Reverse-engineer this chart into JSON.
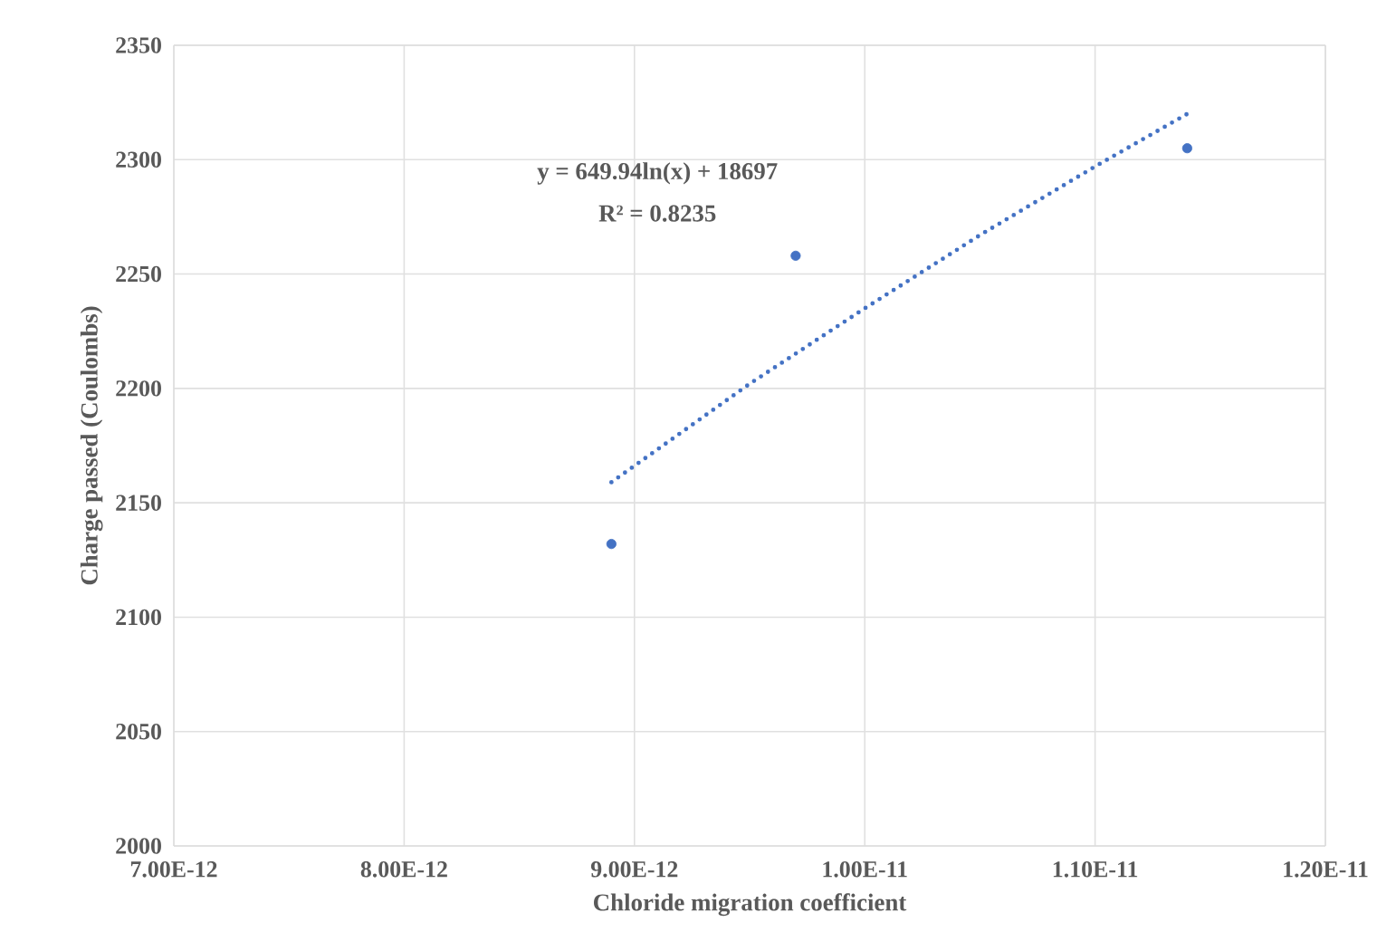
{
  "chart_data": {
    "type": "scatter",
    "xlabel": "Chloride migration coefficient",
    "ylabel": "Charge passed (Coulombs)",
    "annotations": [
      "y = 649.94ln(x) + 18697",
      "R² = 0.8235"
    ],
    "series": [
      {
        "color": "#4472c4",
        "marker": "circle",
        "x": [
          8.9e-12,
          9.7e-12,
          1.14e-11
        ],
        "values": [
          2132,
          2258,
          2305
        ]
      },
      {
        "type": "line",
        "color": "#4472c4",
        "marker": "none",
        "line_style": "dotted",
        "x": [
          8.9e-12,
          9.5e-12,
          1e-11,
          1.05e-11,
          1.1e-11,
          1.14e-11
        ],
        "values": [
          2159,
          2202,
          2235,
          2267,
          2297,
          2320
        ]
      }
    ],
    "xlim": [
      7e-12,
      1.2e-11
    ],
    "xticks": [
      {
        "value": 7e-12,
        "label": "7.00E-12"
      },
      {
        "value": 8e-12,
        "label": "8.00E-12"
      },
      {
        "value": 9e-12,
        "label": "9.00E-12"
      },
      {
        "value": 1e-11,
        "label": "1.00E-11"
      },
      {
        "value": 1.1e-11,
        "label": "1.10E-11"
      },
      {
        "value": 1.2e-11,
        "label": "1.20E-11"
      }
    ],
    "ylim": [
      2000,
      2350
    ],
    "yticks": [
      2000,
      2050,
      2100,
      2150,
      2200,
      2250,
      2300,
      2350
    ],
    "grid": true
  }
}
